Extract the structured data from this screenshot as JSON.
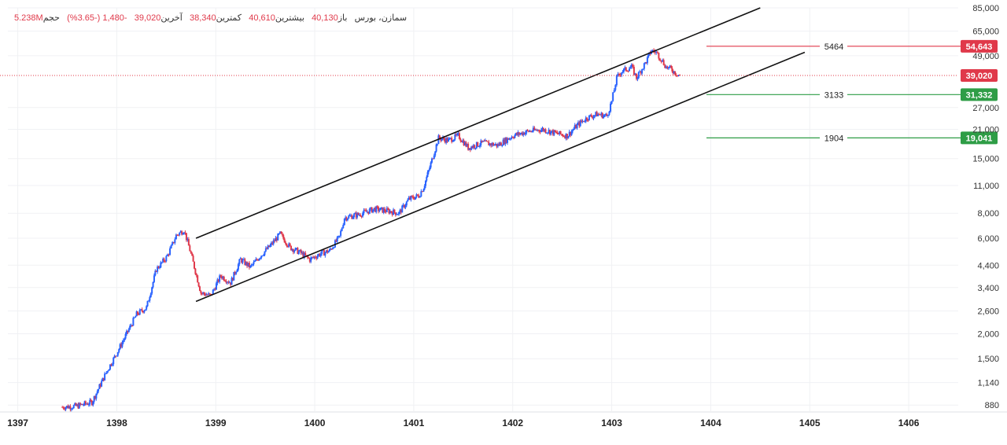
{
  "colors": {
    "up": "#2962ff",
    "down": "#e0394a",
    "resistance": "#e0394a",
    "support": "#2e9d46",
    "channel": "#111111",
    "grid": "#f0f1f4",
    "current_price_badge": "#e0394a"
  },
  "header": {
    "symbol_label": "سمازن، بورس",
    "open_label": "باز",
    "open_value": "40,130",
    "high_label": "بیشترین",
    "high_value": "40,610",
    "low_label": "کمترین",
    "low_value": "38,340",
    "last_label": "آخرین",
    "last_value": "39,020",
    "change_value": "-1,480 (-3.65%)",
    "volume_label": "حجم",
    "volume_value": "5.238M"
  },
  "chart_data": {
    "type": "candlestick",
    "y_scale": "log",
    "ylim": [
      820,
      85000
    ],
    "y_ticks": [
      "85,000",
      "65,000",
      "49,000",
      "27,000",
      "21,000",
      "15,000",
      "11,000",
      "8,000",
      "6,000",
      "4,400",
      "3,400",
      "2,600",
      "2,000",
      "1,500",
      "1,140",
      "880"
    ],
    "y_tick_values": [
      85000,
      65000,
      49000,
      27000,
      21000,
      15000,
      11000,
      8000,
      6000,
      4400,
      3400,
      2600,
      2000,
      1500,
      1140,
      880
    ],
    "x_ticks": [
      "1397",
      "1398",
      "1399",
      "1400",
      "1401",
      "1402",
      "1403",
      "1404",
      "1405",
      "1406"
    ],
    "x_tick_values": [
      1397,
      1398,
      1399,
      1400,
      1401,
      1402,
      1403,
      1404,
      1405,
      1406
    ],
    "xlim": [
      1396.9,
      1406.5
    ],
    "price_path": [
      [
        1397.45,
        860
      ],
      [
        1397.6,
        870
      ],
      [
        1397.75,
        910
      ],
      [
        1397.9,
        1300
      ],
      [
        1398.0,
        1600
      ],
      [
        1398.1,
        2000
      ],
      [
        1398.2,
        2500
      ],
      [
        1398.3,
        2700
      ],
      [
        1398.4,
        4200
      ],
      [
        1398.5,
        4800
      ],
      [
        1398.55,
        5400
      ],
      [
        1398.6,
        6200
      ],
      [
        1398.68,
        6600
      ],
      [
        1398.75,
        5000
      ],
      [
        1398.85,
        3200
      ],
      [
        1398.95,
        3100
      ],
      [
        1399.05,
        3900
      ],
      [
        1399.15,
        3600
      ],
      [
        1399.25,
        4700
      ],
      [
        1399.35,
        4300
      ],
      [
        1399.45,
        4900
      ],
      [
        1399.55,
        5500
      ],
      [
        1399.65,
        6300
      ],
      [
        1399.75,
        5400
      ],
      [
        1399.85,
        5100
      ],
      [
        1399.95,
        4700
      ],
      [
        1400.05,
        5000
      ],
      [
        1400.15,
        5200
      ],
      [
        1400.25,
        6100
      ],
      [
        1400.3,
        7600
      ],
      [
        1400.45,
        7900
      ],
      [
        1400.6,
        8400
      ],
      [
        1400.75,
        8200
      ],
      [
        1400.85,
        8000
      ],
      [
        1400.95,
        9400
      ],
      [
        1401.05,
        9800
      ],
      [
        1401.1,
        10800
      ],
      [
        1401.15,
        13000
      ],
      [
        1401.25,
        19000
      ],
      [
        1401.35,
        18500
      ],
      [
        1401.45,
        19500
      ],
      [
        1401.55,
        17000
      ],
      [
        1401.7,
        18000
      ],
      [
        1401.85,
        17500
      ],
      [
        1402.0,
        19500
      ],
      [
        1402.15,
        20500
      ],
      [
        1402.3,
        21000
      ],
      [
        1402.45,
        20000
      ],
      [
        1402.55,
        19500
      ],
      [
        1402.65,
        22000
      ],
      [
        1402.75,
        24000
      ],
      [
        1402.85,
        25000
      ],
      [
        1402.95,
        24500
      ],
      [
        1403.0,
        29000
      ],
      [
        1403.05,
        38000
      ],
      [
        1403.1,
        41000
      ],
      [
        1403.2,
        43000
      ],
      [
        1403.25,
        38000
      ],
      [
        1403.35,
        46000
      ],
      [
        1403.4,
        52000
      ],
      [
        1403.45,
        51000
      ],
      [
        1403.5,
        47000
      ],
      [
        1403.55,
        43000
      ],
      [
        1403.6,
        42000
      ],
      [
        1403.65,
        40000
      ],
      [
        1403.7,
        39020
      ]
    ],
    "last_price": 39020,
    "channel": {
      "upper": {
        "from": [
          1398.8,
          6000
        ],
        "to": [
          1404.5,
          85000
        ]
      },
      "lower": {
        "from": [
          1398.8,
          2900
        ],
        "to": [
          1404.95,
          51000
        ]
      }
    },
    "levels": [
      {
        "label": "5464",
        "value": 54643,
        "badge": "54,643",
        "kind": "resistance"
      },
      {
        "label": "3133",
        "value": 31332,
        "badge": "31,332",
        "kind": "support"
      },
      {
        "label": "1904",
        "value": 19041,
        "badge": "19,041",
        "kind": "support"
      }
    ],
    "current_price_badge": "39,020",
    "grid": true
  }
}
